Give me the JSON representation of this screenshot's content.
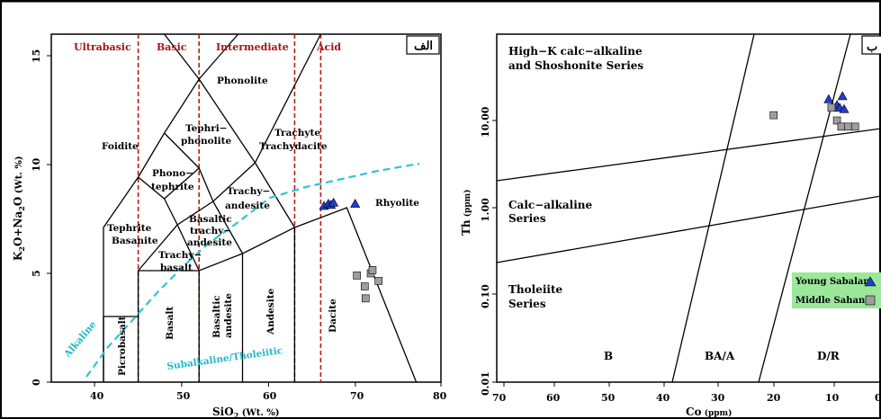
{
  "panel_left": {
    "panel_label": "الف",
    "x_axis": {
      "label": "SiO",
      "sub": "2",
      "unit": " (Wt. %)",
      "ticks": [
        "40",
        "50",
        "60",
        "70",
        "80"
      ]
    },
    "y_axis": {
      "label_a": "K",
      "sub_a": "2",
      "label_b": "O+Na",
      "sub_b": "2",
      "label_c": "O",
      "unit": " (Wt. %)",
      "ticks": [
        "0",
        "5",
        "10",
        "15"
      ]
    },
    "categories": {
      "ultrabasic": "Ultrabasic",
      "basic": "Basic",
      "intermediate": "Intermediate",
      "acid": "Acid"
    },
    "fields": {
      "phonolite": "Phonolite",
      "foidite": "Foidite",
      "tephriphonolite_1": "Tephri−",
      "tephriphonolite_2": "phonolite",
      "trachyte_1": "Trachyte",
      "trachyte_2": "Trachydacite",
      "phonotephrite_1": "Phono−",
      "phonotephrite_2": "tephrite",
      "trachyandesite_1": "Trachy−",
      "trachyandesite_2": "andesite",
      "rhyolite": "Rhyolite",
      "tephrite_1": "Tephrite",
      "tephrite_2": "Basanite",
      "bta_1": "Basaltic",
      "bta_2": "trachy−",
      "bta_3": "andesite",
      "trachybasalt_1": "Trachy−",
      "trachybasalt_2": "basalt",
      "picrobasalt": "Picrobasalt",
      "basalt": "Basalt",
      "basaltic_andesite_1": "Basaltic",
      "basaltic_andesite_2": "andesite",
      "andesite": "Andesite",
      "dacite": "Dacite"
    },
    "alkaline_label": "Alkaline",
    "subalkaline_label": "Subalkaline/Tholeiitic"
  },
  "panel_right": {
    "panel_label": "ب",
    "x_axis": {
      "label": "Co",
      "unit": " (ppm)",
      "ticks": [
        "70",
        "60",
        "50",
        "40",
        "30",
        "20",
        "10",
        "0"
      ]
    },
    "y_axis": {
      "label": "Th",
      "unit": " (ppm)",
      "ticks": [
        "0.01",
        "0.10",
        "1.00",
        "10.00"
      ]
    },
    "series_labels": {
      "hk_1": "High−K calc−alkaline",
      "hk_2": "and Shoshonite Series",
      "ca_1": "Calc−alkaline",
      "ca_2": "Series",
      "th_1": "Tholeiite",
      "th_2": "Series"
    },
    "fields": {
      "b": "B",
      "ba_a": "BA/A",
      "d_r": "D/R"
    },
    "legend": {
      "young": "Young Sabalan",
      "middle": "Middle Sahand"
    }
  },
  "colors": {
    "young_sabalan": "#1f3fd1",
    "middle_sahand": "#9e9e9e",
    "category_text": "#a31515",
    "divider_red": "#c01818",
    "alkaline_line": "#2ec4d6",
    "legend_bg": "#9be89b"
  },
  "chart_data": [
    {
      "type": "scatter",
      "title": "",
      "xlabel": "SiO2 (Wt. %)",
      "ylabel": "K2O+Na2O (Wt. %)",
      "xlim": [
        35,
        80
      ],
      "ylim": [
        0,
        16
      ],
      "series": [
        {
          "name": "Young Sabalan",
          "marker": "triangle",
          "x": [
            66.5,
            67.0,
            67.3,
            67.6,
            70.1
          ],
          "y": [
            8.1,
            8.2,
            8.15,
            8.25,
            8.2
          ]
        },
        {
          "name": "Middle Sahand",
          "marker": "square",
          "x": [
            70.3,
            71.2,
            71.9,
            72.1,
            72.8,
            71.3
          ],
          "y": [
            4.9,
            4.4,
            5.0,
            5.15,
            4.65,
            3.85
          ]
        }
      ]
    },
    {
      "type": "scatter",
      "title": "",
      "xlabel": "Co (ppm)",
      "ylabel": "Th (ppm)",
      "xlim": [
        70,
        0
      ],
      "ylim": [
        0.01,
        50
      ],
      "yscale": "log",
      "series": [
        {
          "name": "Young Sabalan",
          "marker": "triangle",
          "x": [
            11.0,
            9.5,
            9.0,
            8.2,
            8.5
          ],
          "y": [
            17.5,
            15.0,
            14.0,
            13.5,
            19.0
          ]
        },
        {
          "name": "Middle Sahand",
          "marker": "square",
          "x": [
            21.0,
            10.5,
            9.5,
            8.7,
            7.5,
            6.2
          ],
          "y": [
            11.5,
            14.0,
            10.0,
            8.5,
            8.5,
            8.5
          ]
        }
      ]
    }
  ]
}
